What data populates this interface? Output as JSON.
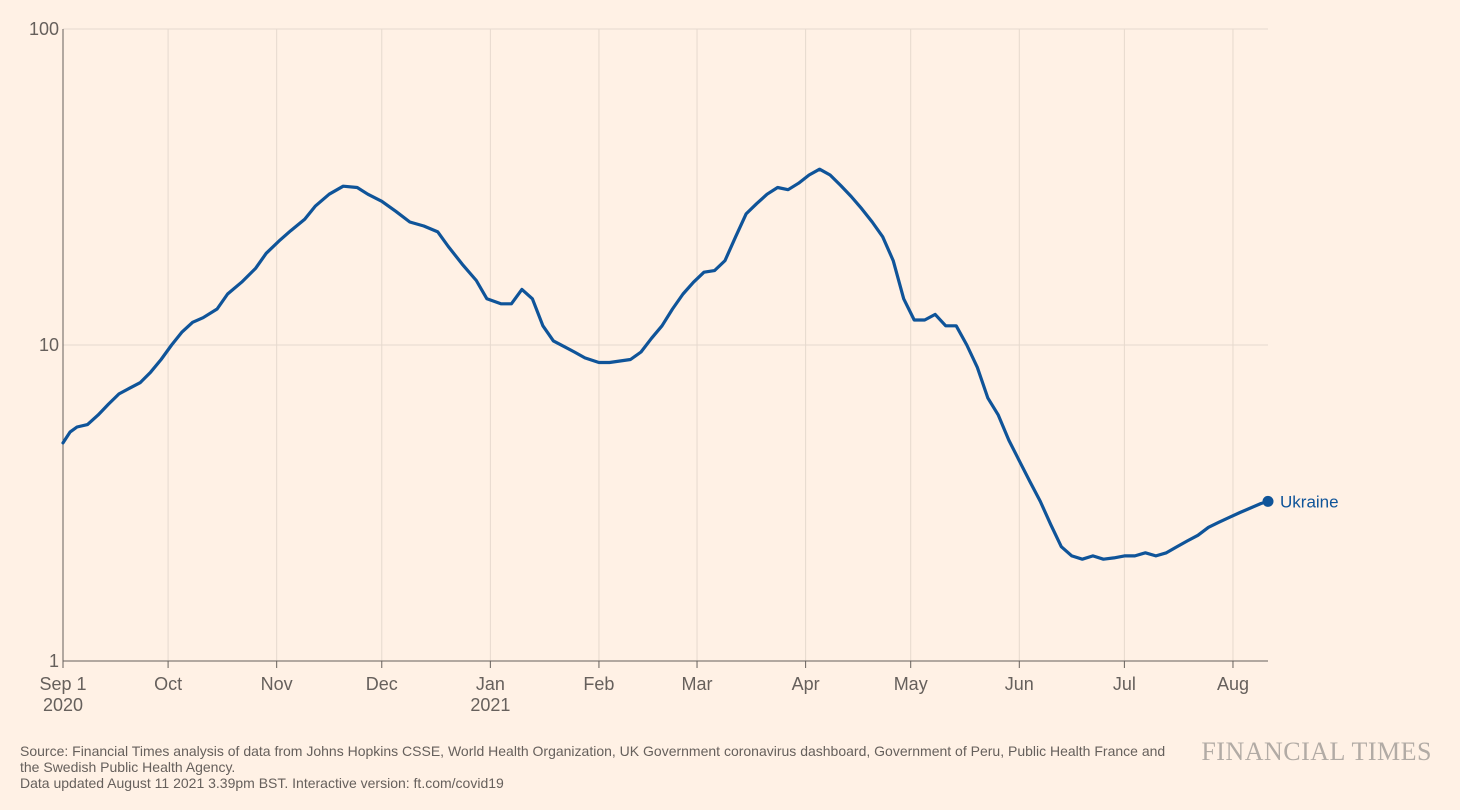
{
  "chart_data": {
    "type": "line",
    "title": "",
    "xlabel": "",
    "ylabel": "",
    "yscale": "log",
    "ylim": [
      1,
      100
    ],
    "xlim": [
      "2020-09-01",
      "2021-08-11"
    ],
    "grid": true,
    "y_ticks": [
      {
        "value": 1,
        "label": "1"
      },
      {
        "value": 10,
        "label": "10"
      },
      {
        "value": 100,
        "label": "100"
      }
    ],
    "x_ticks": [
      {
        "date": "2020-09-01",
        "label": "Sep 1",
        "sublabel": "2020"
      },
      {
        "date": "2020-10-01",
        "label": "Oct",
        "sublabel": ""
      },
      {
        "date": "2020-11-01",
        "label": "Nov",
        "sublabel": ""
      },
      {
        "date": "2020-12-01",
        "label": "Dec",
        "sublabel": ""
      },
      {
        "date": "2021-01-01",
        "label": "Jan",
        "sublabel": "2021"
      },
      {
        "date": "2021-02-01",
        "label": "Feb",
        "sublabel": ""
      },
      {
        "date": "2021-03-01",
        "label": "Mar",
        "sublabel": ""
      },
      {
        "date": "2021-04-01",
        "label": "Apr",
        "sublabel": ""
      },
      {
        "date": "2021-05-01",
        "label": "May",
        "sublabel": ""
      },
      {
        "date": "2021-06-01",
        "label": "Jun",
        "sublabel": ""
      },
      {
        "date": "2021-07-01",
        "label": "Jul",
        "sublabel": ""
      },
      {
        "date": "2021-08-01",
        "label": "Aug",
        "sublabel": ""
      }
    ],
    "series": [
      {
        "name": "Ukraine",
        "color": "#0f5499",
        "points": [
          [
            "2020-09-01",
            4.9
          ],
          [
            "2020-09-03",
            5.3
          ],
          [
            "2020-09-05",
            5.5
          ],
          [
            "2020-09-08",
            5.6
          ],
          [
            "2020-09-11",
            6.0
          ],
          [
            "2020-09-14",
            6.5
          ],
          [
            "2020-09-17",
            7.0
          ],
          [
            "2020-09-20",
            7.3
          ],
          [
            "2020-09-23",
            7.6
          ],
          [
            "2020-09-26",
            8.2
          ],
          [
            "2020-09-29",
            9.0
          ],
          [
            "2020-10-02",
            10.0
          ],
          [
            "2020-10-05",
            11.0
          ],
          [
            "2020-10-08",
            11.8
          ],
          [
            "2020-10-11",
            12.2
          ],
          [
            "2020-10-15",
            13.0
          ],
          [
            "2020-10-18",
            14.5
          ],
          [
            "2020-10-22",
            15.8
          ],
          [
            "2020-10-26",
            17.5
          ],
          [
            "2020-10-29",
            19.5
          ],
          [
            "2020-11-02",
            21.5
          ],
          [
            "2020-11-05",
            23.0
          ],
          [
            "2020-11-09",
            25.0
          ],
          [
            "2020-11-12",
            27.5
          ],
          [
            "2020-11-16",
            30.0
          ],
          [
            "2020-11-20",
            31.8
          ],
          [
            "2020-11-24",
            31.5
          ],
          [
            "2020-11-27",
            30.0
          ],
          [
            "2020-12-01",
            28.5
          ],
          [
            "2020-12-05",
            26.5
          ],
          [
            "2020-12-09",
            24.5
          ],
          [
            "2020-12-13",
            23.8
          ],
          [
            "2020-12-17",
            22.8
          ],
          [
            "2020-12-20",
            20.5
          ],
          [
            "2020-12-24",
            18.0
          ],
          [
            "2020-12-28",
            16.0
          ],
          [
            "2020-12-31",
            14.0
          ],
          [
            "2021-01-04",
            13.5
          ],
          [
            "2021-01-07",
            13.5
          ],
          [
            "2021-01-10",
            15.0
          ],
          [
            "2021-01-13",
            14.0
          ],
          [
            "2021-01-16",
            11.5
          ],
          [
            "2021-01-19",
            10.3
          ],
          [
            "2021-01-22",
            9.9
          ],
          [
            "2021-01-25",
            9.5
          ],
          [
            "2021-01-28",
            9.1
          ],
          [
            "2021-02-01",
            8.8
          ],
          [
            "2021-02-04",
            8.8
          ],
          [
            "2021-02-07",
            8.9
          ],
          [
            "2021-02-10",
            9.0
          ],
          [
            "2021-02-13",
            9.5
          ],
          [
            "2021-02-16",
            10.5
          ],
          [
            "2021-02-19",
            11.5
          ],
          [
            "2021-02-22",
            13.0
          ],
          [
            "2021-02-25",
            14.5
          ],
          [
            "2021-02-28",
            15.8
          ],
          [
            "2021-03-03",
            17.0
          ],
          [
            "2021-03-06",
            17.2
          ],
          [
            "2021-03-09",
            18.5
          ],
          [
            "2021-03-12",
            22.0
          ],
          [
            "2021-03-15",
            26.0
          ],
          [
            "2021-03-18",
            28.0
          ],
          [
            "2021-03-21",
            30.0
          ],
          [
            "2021-03-24",
            31.5
          ],
          [
            "2021-03-27",
            31.0
          ],
          [
            "2021-03-30",
            32.5
          ],
          [
            "2021-04-02",
            34.5
          ],
          [
            "2021-04-05",
            36.0
          ],
          [
            "2021-04-08",
            34.5
          ],
          [
            "2021-04-11",
            32.0
          ],
          [
            "2021-04-14",
            29.5
          ],
          [
            "2021-04-17",
            27.0
          ],
          [
            "2021-04-20",
            24.5
          ],
          [
            "2021-04-23",
            22.0
          ],
          [
            "2021-04-26",
            18.5
          ],
          [
            "2021-04-29",
            14.0
          ],
          [
            "2021-05-02",
            12.0
          ],
          [
            "2021-05-05",
            12.0
          ],
          [
            "2021-05-08",
            12.5
          ],
          [
            "2021-05-11",
            11.5
          ],
          [
            "2021-05-14",
            11.5
          ],
          [
            "2021-05-17",
            10.0
          ],
          [
            "2021-05-20",
            8.5
          ],
          [
            "2021-05-23",
            6.8
          ],
          [
            "2021-05-26",
            6.0
          ],
          [
            "2021-05-29",
            5.0
          ],
          [
            "2021-06-01",
            4.3
          ],
          [
            "2021-06-04",
            3.7
          ],
          [
            "2021-06-07",
            3.2
          ],
          [
            "2021-06-10",
            2.7
          ],
          [
            "2021-06-13",
            2.3
          ],
          [
            "2021-06-16",
            2.15
          ],
          [
            "2021-06-19",
            2.1
          ],
          [
            "2021-06-22",
            2.15
          ],
          [
            "2021-06-25",
            2.1
          ],
          [
            "2021-06-28",
            2.12
          ],
          [
            "2021-07-01",
            2.15
          ],
          [
            "2021-07-04",
            2.15
          ],
          [
            "2021-07-07",
            2.2
          ],
          [
            "2021-07-10",
            2.15
          ],
          [
            "2021-07-13",
            2.2
          ],
          [
            "2021-07-16",
            2.3
          ],
          [
            "2021-07-19",
            2.4
          ],
          [
            "2021-07-22",
            2.5
          ],
          [
            "2021-07-25",
            2.65
          ],
          [
            "2021-07-28",
            2.75
          ],
          [
            "2021-07-31",
            2.85
          ],
          [
            "2021-08-03",
            2.95
          ],
          [
            "2021-08-06",
            3.05
          ],
          [
            "2021-08-09",
            3.15
          ],
          [
            "2021-08-11",
            3.2
          ]
        ]
      }
    ]
  },
  "footer": {
    "source_line_1": "Source: Financial Times analysis of data from Johns Hopkins CSSE, World Health Organization, UK Government coronavirus dashboard, Government of Peru, Public Health France and",
    "source_line_2": "the Swedish Public Health Agency.",
    "updated_line": "Data updated August 11 2021 3.39pm BST. Interactive version: ft.com/covid19"
  },
  "logo": "FINANCIAL TIMES"
}
